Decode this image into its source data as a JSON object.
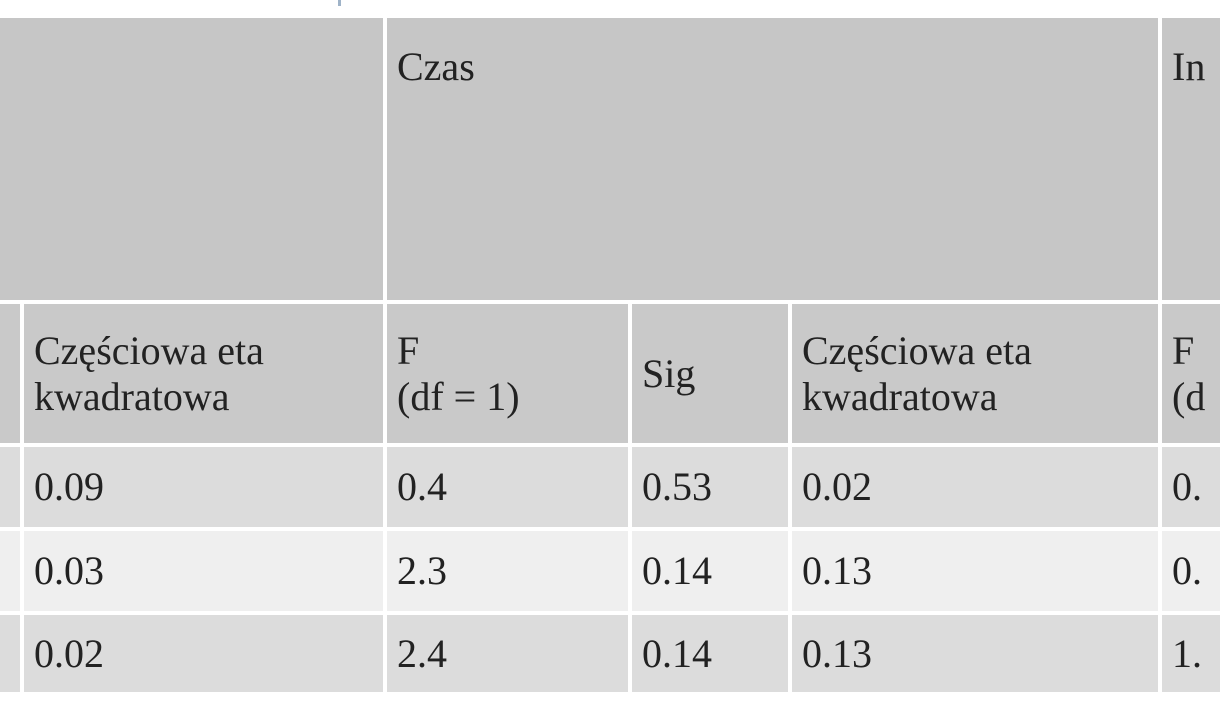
{
  "table": {
    "group_headers": [
      "Czas",
      "In"
    ],
    "column_headers": [
      "Częściowa eta kwadratowa",
      "F\n(df = 1)",
      "Sig",
      "Częściowa eta kwadratowa",
      "F\n(d"
    ],
    "rows": [
      [
        "0.09",
        "0.4",
        "0.53",
        "0.02",
        "0."
      ],
      [
        "0.03",
        "2.3",
        "0.14",
        "0.13",
        "0."
      ],
      [
        "0.02",
        "2.4",
        "0.14",
        "0.13",
        "1."
      ]
    ]
  }
}
